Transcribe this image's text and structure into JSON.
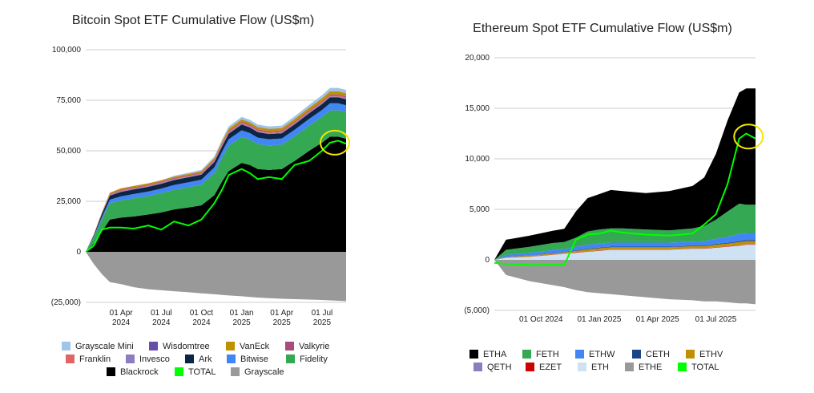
{
  "chart_data": [
    {
      "type": "area",
      "title": "Bitcoin Spot ETF Cumulative Flow (US$m)",
      "ylim": [
        -25000,
        100000
      ],
      "yticks": [
        "100,000",
        "75,000",
        "50,000",
        "25,000",
        "0",
        "(25,000)"
      ],
      "ytick_values": [
        100000,
        75000,
        50000,
        25000,
        0,
        -25000
      ],
      "xticks": [
        "01 Apr\n2024",
        "01 Jul\n2024",
        "01 Oct\n2024",
        "01 Jan\n2025",
        "01 Apr\n2025",
        "01 Jul\n2025"
      ],
      "xtick_values": [
        2024.25,
        2024.5,
        2024.75,
        2025.0,
        2025.25,
        2025.5
      ],
      "xlim": [
        2024.03,
        2025.65
      ],
      "grid": true,
      "legend_position": "bottom",
      "x": [
        2024.03,
        2024.08,
        2024.13,
        2024.18,
        2024.25,
        2024.33,
        2024.42,
        2024.5,
        2024.58,
        2024.67,
        2024.75,
        2024.83,
        2024.88,
        2024.92,
        2025.0,
        2025.05,
        2025.1,
        2025.17,
        2025.25,
        2025.33,
        2025.42,
        2025.5,
        2025.55,
        2025.6,
        2025.65
      ],
      "series": [
        {
          "name": "Blackrock",
          "color": "#000000",
          "values": [
            0,
            4000,
            10000,
            16000,
            17000,
            17500,
            18500,
            19500,
            21000,
            22000,
            23000,
            28000,
            35000,
            40000,
            44000,
            43000,
            41000,
            40500,
            41000,
            45000,
            50000,
            54000,
            57000,
            57000,
            56000
          ]
        },
        {
          "name": "Fidelity",
          "color": "#34a853",
          "values": [
            0,
            3000,
            6000,
            8000,
            8500,
            9000,
            9200,
            9500,
            9700,
            10000,
            10200,
            11000,
            11800,
            12500,
            12800,
            12600,
            12300,
            12100,
            12000,
            12200,
            12500,
            12800,
            13000,
            13000,
            13000
          ]
        },
        {
          "name": "Bitwise",
          "color": "#4285f4",
          "values": [
            0,
            600,
            1200,
            1800,
            2000,
            2100,
            2200,
            2300,
            2400,
            2400,
            2500,
            2800,
            3000,
            3200,
            3300,
            3200,
            3200,
            3100,
            3100,
            3200,
            3300,
            3400,
            3500,
            3500,
            3500
          ]
        },
        {
          "name": "Ark",
          "color": "#0b2545",
          "values": [
            0,
            600,
            1500,
            2000,
            2200,
            2300,
            2300,
            2400,
            2400,
            2500,
            2500,
            2600,
            2700,
            2800,
            2900,
            2800,
            2700,
            2600,
            2600,
            2700,
            2800,
            2900,
            3000,
            3000,
            3000
          ]
        },
        {
          "name": "Invesco",
          "color": "#8e7cc3",
          "values": [
            0,
            100,
            200,
            300,
            300,
            300,
            300,
            300,
            300,
            300,
            300,
            350,
            400,
            400,
            400,
            400,
            400,
            400,
            400,
            400,
            400,
            400,
            400,
            400,
            400
          ]
        },
        {
          "name": "Franklin",
          "color": "#e06666",
          "values": [
            0,
            100,
            200,
            300,
            400,
            400,
            400,
            400,
            400,
            400,
            400,
            450,
            500,
            500,
            500,
            500,
            500,
            500,
            500,
            500,
            500,
            500,
            500,
            500,
            500
          ]
        },
        {
          "name": "Valkyrie",
          "color": "#a64d79",
          "values": [
            0,
            100,
            200,
            300,
            400,
            400,
            400,
            400,
            400,
            400,
            400,
            450,
            500,
            500,
            500,
            500,
            500,
            500,
            500,
            500,
            500,
            500,
            500,
            500,
            500
          ]
        },
        {
          "name": "VanEck",
          "color": "#bf9000",
          "values": [
            0,
            100,
            300,
            500,
            600,
            600,
            600,
            600,
            600,
            600,
            600,
            700,
            900,
            1000,
            1100,
            1100,
            1100,
            1100,
            1100,
            1200,
            1300,
            1400,
            1500,
            1500,
            1500
          ]
        },
        {
          "name": "Wisdomtree",
          "color": "#674ea7",
          "values": [
            0,
            10,
            20,
            30,
            40,
            40,
            40,
            40,
            40,
            40,
            40,
            50,
            60,
            60,
            70,
            70,
            70,
            70,
            70,
            80,
            90,
            90,
            100,
            100,
            100
          ]
        },
        {
          "name": "Grayscale Mini",
          "color": "#9fc5e8",
          "values": [
            0,
            0,
            0,
            0,
            0,
            0,
            0,
            0,
            400,
            500,
            600,
            800,
            1000,
            1100,
            1200,
            1200,
            1200,
            1200,
            1200,
            1300,
            1400,
            1500,
            1600,
            1600,
            1600
          ]
        },
        {
          "name": "Grayscale",
          "color": "#999999",
          "values": [
            0,
            -6000,
            -11000,
            -15000,
            -16000,
            -17500,
            -18500,
            -19000,
            -19500,
            -20000,
            -20500,
            -21000,
            -21300,
            -21600,
            -22000,
            -22300,
            -22600,
            -22900,
            -23200,
            -23400,
            -23600,
            -23800,
            -24000,
            -24200,
            -24400
          ]
        }
      ],
      "total": {
        "name": "TOTAL",
        "color": "#00ff00",
        "values": [
          0,
          3000,
          11000,
          12000,
          12000,
          11500,
          13000,
          11000,
          15000,
          13000,
          16000,
          24000,
          31000,
          38000,
          41000,
          39000,
          36000,
          37000,
          36000,
          43000,
          45000,
          50000,
          54000,
          55000,
          53500
        ]
      },
      "highlight_circle": {
        "x": 2025.58,
        "y": 54000
      }
    },
    {
      "type": "area",
      "title": "Ethereum Spot ETF Cumulative Flow (US$m)",
      "ylim": [
        -5000,
        20000
      ],
      "yticks": [
        "20,000",
        "15,000",
        "10,000",
        "5,000",
        "0",
        "(5,000)"
      ],
      "ytick_values": [
        20000,
        15000,
        10000,
        5000,
        0,
        -5000
      ],
      "xticks": [
        "01 Oct 2024",
        "01 Jan 2025",
        "01 Apr 2025",
        "01 Jul 2025"
      ],
      "xtick_values": [
        2024.75,
        2025.0,
        2025.25,
        2025.5
      ],
      "xlim": [
        2024.55,
        2025.67
      ],
      "grid": true,
      "legend_position": "bottom",
      "x": [
        2024.55,
        2024.6,
        2024.7,
        2024.8,
        2024.85,
        2024.9,
        2024.95,
        2025.0,
        2025.05,
        2025.1,
        2025.2,
        2025.3,
        2025.4,
        2025.45,
        2025.5,
        2025.55,
        2025.6,
        2025.63,
        2025.67
      ],
      "series": [
        {
          "name": "ETH",
          "color": "#cfe2f3",
          "values": [
            0,
            200,
            300,
            500,
            600,
            700,
            800,
            900,
            1000,
            1000,
            1000,
            1000,
            1100,
            1100,
            1200,
            1300,
            1400,
            1500,
            1500
          ]
        },
        {
          "name": "EZET",
          "color": "#cc0000",
          "values": [
            0,
            10,
            20,
            20,
            20,
            30,
            30,
            30,
            30,
            30,
            30,
            30,
            30,
            30,
            40,
            40,
            40,
            40,
            40
          ]
        },
        {
          "name": "QETH",
          "color": "#8e7cc3",
          "values": [
            0,
            10,
            10,
            10,
            10,
            20,
            20,
            20,
            20,
            20,
            20,
            20,
            20,
            20,
            20,
            20,
            20,
            20,
            20
          ]
        },
        {
          "name": "ETHV",
          "color": "#bf9000",
          "values": [
            0,
            50,
            80,
            100,
            100,
            150,
            200,
            200,
            200,
            200,
            200,
            200,
            200,
            200,
            250,
            250,
            300,
            300,
            300
          ]
        },
        {
          "name": "CETH",
          "color": "#1c4587",
          "values": [
            0,
            20,
            30,
            40,
            40,
            50,
            60,
            60,
            60,
            60,
            60,
            60,
            60,
            60,
            70,
            80,
            100,
            100,
            100
          ]
        },
        {
          "name": "ETHW",
          "color": "#4285f4",
          "values": [
            0,
            200,
            250,
            300,
            300,
            350,
            400,
            400,
            400,
            400,
            400,
            400,
            400,
            450,
            500,
            600,
            700,
            700,
            700
          ]
        },
        {
          "name": "FETH",
          "color": "#34a853",
          "values": [
            0,
            500,
            600,
            700,
            700,
            900,
            1300,
            1400,
            1400,
            1400,
            1300,
            1200,
            1300,
            1500,
            1900,
            2500,
            3000,
            2800,
            2800
          ]
        },
        {
          "name": "ETHA",
          "color": "#000000",
          "values": [
            0,
            1000,
            1100,
            1200,
            1300,
            2600,
            3300,
            3500,
            3800,
            3700,
            3600,
            3900,
            4200,
            4800,
            6500,
            9000,
            11000,
            11500,
            11500
          ]
        },
        {
          "name": "ETHE",
          "color": "#999999",
          "values": [
            0,
            -1500,
            -2100,
            -2500,
            -2700,
            -3000,
            -3200,
            -3300,
            -3400,
            -3500,
            -3700,
            -3900,
            -4000,
            -4100,
            -4100,
            -4200,
            -4300,
            -4300,
            -4400
          ]
        }
      ],
      "total": {
        "name": "TOTAL",
        "color": "#00ff00",
        "values": [
          -300,
          -400,
          -500,
          -500,
          -500,
          2000,
          2500,
          2600,
          2900,
          2700,
          2500,
          2400,
          2600,
          3500,
          4500,
          7500,
          12000,
          12500,
          12000
        ]
      },
      "highlight_circle": {
        "x": 2025.64,
        "y": 12200
      }
    }
  ],
  "legend_left": [
    {
      "name": "Grayscale Mini",
      "color": "#9fc5e8"
    },
    {
      "name": "Wisdomtree",
      "color": "#674ea7"
    },
    {
      "name": "VanEck",
      "color": "#bf9000"
    },
    {
      "name": "Valkyrie",
      "color": "#a64d79"
    },
    {
      "name": "Franklin",
      "color": "#e06666"
    },
    {
      "name": "Invesco",
      "color": "#8e7cc3"
    },
    {
      "name": "Ark",
      "color": "#0b2545"
    },
    {
      "name": "Bitwise",
      "color": "#4285f4"
    },
    {
      "name": "Fidelity",
      "color": "#34a853"
    },
    {
      "name": "Blackrock",
      "color": "#000000"
    },
    {
      "name": "TOTAL",
      "color": "#00ff00"
    },
    {
      "name": "Grayscale",
      "color": "#999999"
    }
  ],
  "legend_right": [
    {
      "name": "ETHA",
      "color": "#000000"
    },
    {
      "name": "FETH",
      "color": "#34a853"
    },
    {
      "name": "ETHW",
      "color": "#4285f4"
    },
    {
      "name": "CETH",
      "color": "#1c4587"
    },
    {
      "name": "ETHV",
      "color": "#bf9000"
    },
    {
      "name": "QETH",
      "color": "#8e7cc3"
    },
    {
      "name": "EZET",
      "color": "#cc0000"
    },
    {
      "name": "ETH",
      "color": "#cfe2f3"
    },
    {
      "name": "ETHE",
      "color": "#999999"
    },
    {
      "name": "TOTAL",
      "color": "#00ff00"
    }
  ]
}
